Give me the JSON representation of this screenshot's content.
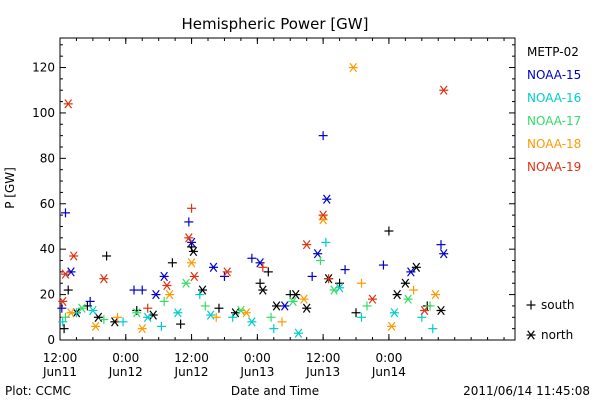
{
  "chart_data": {
    "type": "scatter",
    "title": "Hemispheric Power [GW]",
    "ylabel": "P [GW]",
    "xlabel": "Date and Time",
    "ylim": [
      0,
      133
    ],
    "xlim": [
      "2011-06-11T12:00",
      "2011-06-14T23:00"
    ],
    "yticks": [
      0,
      20,
      40,
      60,
      80,
      100,
      120
    ],
    "xticks": [
      {
        "time": "2011-06-11T12:00",
        "line1": "12:00",
        "line2": "Jun11"
      },
      {
        "time": "2011-06-12T00:00",
        "line1": "0:00",
        "line2": "Jun12"
      },
      {
        "time": "2011-06-12T12:00",
        "line1": "12:00",
        "line2": "Jun12"
      },
      {
        "time": "2011-06-13T00:00",
        "line1": "0:00",
        "line2": "Jun13"
      },
      {
        "time": "2011-06-13T12:00",
        "line1": "12:00",
        "line2": "Jun13"
      },
      {
        "time": "2011-06-14T00:00",
        "line1": "0:00",
        "line2": "Jun14"
      }
    ],
    "legend_position": "right",
    "marker_legend": [
      {
        "symbol": "+",
        "label": "south"
      },
      {
        "symbol": "*",
        "label": "north"
      }
    ],
    "series": [
      {
        "name": "METP-02",
        "color": "#000000",
        "points": [
          {
            "t": "2011-06-11T12:45",
            "y": 5,
            "m": "+"
          },
          {
            "t": "2011-06-11T13:30",
            "y": 22,
            "m": "+"
          },
          {
            "t": "2011-06-11T15:00",
            "y": 12,
            "m": "*"
          },
          {
            "t": "2011-06-11T17:00",
            "y": 15,
            "m": "+"
          },
          {
            "t": "2011-06-11T19:00",
            "y": 10,
            "m": "*"
          },
          {
            "t": "2011-06-11T20:30",
            "y": 37,
            "m": "+"
          },
          {
            "t": "2011-06-11T22:00",
            "y": 8,
            "m": "*"
          },
          {
            "t": "2011-06-12T02:00",
            "y": 13,
            "m": "+"
          },
          {
            "t": "2011-06-12T05:00",
            "y": 11,
            "m": "*"
          },
          {
            "t": "2011-06-12T08:30",
            "y": 34,
            "m": "+"
          },
          {
            "t": "2011-06-12T10:00",
            "y": 7,
            "m": "+"
          },
          {
            "t": "2011-06-12T12:00",
            "y": 41,
            "m": "+"
          },
          {
            "t": "2011-06-12T12:20",
            "y": 39,
            "m": "*"
          },
          {
            "t": "2011-06-12T14:00",
            "y": 22,
            "m": "*"
          },
          {
            "t": "2011-06-12T17:00",
            "y": 14,
            "m": "+"
          },
          {
            "t": "2011-06-12T20:00",
            "y": 12,
            "m": "*"
          },
          {
            "t": "2011-06-13T00:30",
            "y": 25,
            "m": "+"
          },
          {
            "t": "2011-06-13T01:00",
            "y": 22,
            "m": "*"
          },
          {
            "t": "2011-06-13T02:00",
            "y": 30,
            "m": "+"
          },
          {
            "t": "2011-06-13T03:30",
            "y": 15,
            "m": "*"
          },
          {
            "t": "2011-06-13T06:00",
            "y": 20,
            "m": "+"
          },
          {
            "t": "2011-06-13T07:00",
            "y": 20,
            "m": "*"
          },
          {
            "t": "2011-06-13T09:00",
            "y": 14,
            "m": "*"
          },
          {
            "t": "2011-06-13T13:00",
            "y": 27,
            "m": "*"
          },
          {
            "t": "2011-06-13T15:00",
            "y": 25,
            "m": "+"
          },
          {
            "t": "2011-06-13T18:00",
            "y": 12,
            "m": "+"
          },
          {
            "t": "2011-06-14T00:00",
            "y": 48,
            "m": "+"
          },
          {
            "t": "2011-06-14T01:30",
            "y": 20,
            "m": "*"
          },
          {
            "t": "2011-06-14T03:00",
            "y": 25,
            "m": "*"
          },
          {
            "t": "2011-06-14T05:00",
            "y": 32,
            "m": "*"
          },
          {
            "t": "2011-06-14T07:00",
            "y": 15,
            "m": "+"
          },
          {
            "t": "2011-06-14T09:30",
            "y": 13,
            "m": "*"
          }
        ]
      },
      {
        "name": "NOAA-15",
        "color": "#0000cc",
        "points": [
          {
            "t": "2011-06-11T12:20",
            "y": 14,
            "m": "+"
          },
          {
            "t": "2011-06-11T13:00",
            "y": 56,
            "m": "+"
          },
          {
            "t": "2011-06-11T14:00",
            "y": 30,
            "m": "*"
          },
          {
            "t": "2011-06-11T17:30",
            "y": 17,
            "m": "+"
          },
          {
            "t": "2011-06-12T01:30",
            "y": 22,
            "m": "+"
          },
          {
            "t": "2011-06-12T03:00",
            "y": 22,
            "m": "+"
          },
          {
            "t": "2011-06-12T05:30",
            "y": 20,
            "m": "*"
          },
          {
            "t": "2011-06-12T07:00",
            "y": 28,
            "m": "*"
          },
          {
            "t": "2011-06-12T11:30",
            "y": 52,
            "m": "+"
          },
          {
            "t": "2011-06-12T12:00",
            "y": 43,
            "m": "*"
          },
          {
            "t": "2011-06-12T16:00",
            "y": 32,
            "m": "*"
          },
          {
            "t": "2011-06-12T18:00",
            "y": 28,
            "m": "+"
          },
          {
            "t": "2011-06-12T23:00",
            "y": 36,
            "m": "+"
          },
          {
            "t": "2011-06-13T00:30",
            "y": 34,
            "m": "*"
          },
          {
            "t": "2011-06-13T05:00",
            "y": 15,
            "m": "*"
          },
          {
            "t": "2011-06-13T10:00",
            "y": 28,
            "m": "+"
          },
          {
            "t": "2011-06-13T11:00",
            "y": 38,
            "m": "*"
          },
          {
            "t": "2011-06-13T12:00",
            "y": 90,
            "m": "+"
          },
          {
            "t": "2011-06-13T12:40",
            "y": 62,
            "m": "*"
          },
          {
            "t": "2011-06-13T16:00",
            "y": 31,
            "m": "+"
          },
          {
            "t": "2011-06-13T23:00",
            "y": 33,
            "m": "+"
          },
          {
            "t": "2011-06-14T04:00",
            "y": 30,
            "m": "*"
          },
          {
            "t": "2011-06-14T09:30",
            "y": 42,
            "m": "+"
          },
          {
            "t": "2011-06-14T10:00",
            "y": 38,
            "m": "*"
          }
        ]
      },
      {
        "name": "NOAA-16",
        "color": "#00cccc",
        "points": [
          {
            "t": "2011-06-11T12:30",
            "y": 8,
            "m": "+"
          },
          {
            "t": "2011-06-11T15:00",
            "y": 12,
            "m": "+"
          },
          {
            "t": "2011-06-11T18:00",
            "y": 13,
            "m": "*"
          },
          {
            "t": "2011-06-11T23:30",
            "y": 8,
            "m": "+"
          },
          {
            "t": "2011-06-12T04:00",
            "y": 10,
            "m": "*"
          },
          {
            "t": "2011-06-12T06:30",
            "y": 6,
            "m": "+"
          },
          {
            "t": "2011-06-12T09:30",
            "y": 12,
            "m": "*"
          },
          {
            "t": "2011-06-12T13:30",
            "y": 20,
            "m": "+"
          },
          {
            "t": "2011-06-12T15:30",
            "y": 11,
            "m": "*"
          },
          {
            "t": "2011-06-12T19:30",
            "y": 10,
            "m": "+"
          },
          {
            "t": "2011-06-12T23:00",
            "y": 8,
            "m": "*"
          },
          {
            "t": "2011-06-13T03:00",
            "y": 5,
            "m": "+"
          },
          {
            "t": "2011-06-13T07:30",
            "y": 3,
            "m": "*"
          },
          {
            "t": "2011-06-13T12:30",
            "y": 43,
            "m": "+"
          },
          {
            "t": "2011-06-13T15:00",
            "y": 23,
            "m": "*"
          },
          {
            "t": "2011-06-13T19:00",
            "y": 10,
            "m": "+"
          },
          {
            "t": "2011-06-14T01:00",
            "y": 12,
            "m": "*"
          },
          {
            "t": "2011-06-14T06:00",
            "y": 10,
            "m": "+"
          },
          {
            "t": "2011-06-14T08:00",
            "y": 5,
            "m": "+"
          }
        ]
      },
      {
        "name": "NOAA-17",
        "color": "#33dd66",
        "points": [
          {
            "t": "2011-06-11T13:00",
            "y": 10,
            "m": "+"
          },
          {
            "t": "2011-06-11T16:00",
            "y": 14,
            "m": "*"
          },
          {
            "t": "2011-06-11T20:00",
            "y": 9,
            "m": "+"
          },
          {
            "t": "2011-06-12T02:00",
            "y": 12,
            "m": "*"
          },
          {
            "t": "2011-06-12T07:00",
            "y": 17,
            "m": "+"
          },
          {
            "t": "2011-06-12T11:00",
            "y": 25,
            "m": "*"
          },
          {
            "t": "2011-06-12T14:30",
            "y": 15,
            "m": "+"
          },
          {
            "t": "2011-06-12T21:00",
            "y": 13,
            "m": "*"
          },
          {
            "t": "2011-06-13T02:30",
            "y": 10,
            "m": "+"
          },
          {
            "t": "2011-06-13T06:30",
            "y": 17,
            "m": "*"
          },
          {
            "t": "2011-06-13T11:30",
            "y": 35,
            "m": "+"
          },
          {
            "t": "2011-06-13T14:00",
            "y": 22,
            "m": "*"
          },
          {
            "t": "2011-06-13T20:00",
            "y": 15,
            "m": "+"
          },
          {
            "t": "2011-06-14T03:30",
            "y": 18,
            "m": "*"
          },
          {
            "t": "2011-06-14T07:30",
            "y": 15,
            "m": "+"
          }
        ]
      },
      {
        "name": "NOAA-18",
        "color": "#ff9900",
        "points": [
          {
            "t": "2011-06-11T14:00",
            "y": 12,
            "m": "*"
          },
          {
            "t": "2011-06-11T18:30",
            "y": 6,
            "m": "*"
          },
          {
            "t": "2011-06-11T22:30",
            "y": 10,
            "m": "+"
          },
          {
            "t": "2011-06-12T03:00",
            "y": 5,
            "m": "*"
          },
          {
            "t": "2011-06-12T08:00",
            "y": 20,
            "m": "*"
          },
          {
            "t": "2011-06-12T12:00",
            "y": 34,
            "m": "*"
          },
          {
            "t": "2011-06-12T16:30",
            "y": 10,
            "m": "+"
          },
          {
            "t": "2011-06-12T22:00",
            "y": 12,
            "m": "*"
          },
          {
            "t": "2011-06-13T04:30",
            "y": 8,
            "m": "+"
          },
          {
            "t": "2011-06-13T08:30",
            "y": 18,
            "m": "*"
          },
          {
            "t": "2011-06-13T12:00",
            "y": 53,
            "m": "*"
          },
          {
            "t": "2011-06-13T17:30",
            "y": 120,
            "m": "*"
          },
          {
            "t": "2011-06-13T19:00",
            "y": 25,
            "m": "+"
          },
          {
            "t": "2011-06-14T00:30",
            "y": 6,
            "m": "*"
          },
          {
            "t": "2011-06-14T04:30",
            "y": 22,
            "m": "+"
          },
          {
            "t": "2011-06-14T08:30",
            "y": 20,
            "m": "*"
          }
        ]
      },
      {
        "name": "NOAA-19",
        "color": "#dd3311",
        "points": [
          {
            "t": "2011-06-11T12:30",
            "y": 17,
            "m": "*"
          },
          {
            "t": "2011-06-11T13:00",
            "y": 29,
            "m": "*"
          },
          {
            "t": "2011-06-11T13:30",
            "y": 104,
            "m": "*"
          },
          {
            "t": "2011-06-11T14:30",
            "y": 37,
            "m": "*"
          },
          {
            "t": "2011-06-11T20:00",
            "y": 27,
            "m": "*"
          },
          {
            "t": "2011-06-12T04:00",
            "y": 14,
            "m": "+"
          },
          {
            "t": "2011-06-12T07:30",
            "y": 24,
            "m": "*"
          },
          {
            "t": "2011-06-12T11:30",
            "y": 45,
            "m": "*"
          },
          {
            "t": "2011-06-12T12:00",
            "y": 58,
            "m": "+"
          },
          {
            "t": "2011-06-12T12:30",
            "y": 28,
            "m": "*"
          },
          {
            "t": "2011-06-12T18:30",
            "y": 30,
            "m": "*"
          },
          {
            "t": "2011-06-13T01:00",
            "y": 32,
            "m": "+"
          },
          {
            "t": "2011-06-13T09:00",
            "y": 42,
            "m": "*"
          },
          {
            "t": "2011-06-13T12:00",
            "y": 55,
            "m": "*"
          },
          {
            "t": "2011-06-13T13:00",
            "y": 27,
            "m": "+"
          },
          {
            "t": "2011-06-13T21:00",
            "y": 18,
            "m": "*"
          },
          {
            "t": "2011-06-14T06:30",
            "y": 13,
            "m": "*"
          },
          {
            "t": "2011-06-14T10:00",
            "y": 110,
            "m": "*"
          }
        ]
      }
    ]
  },
  "footer": {
    "left": "Plot: CCMC",
    "right": "2011/06/14 11:45:08"
  }
}
